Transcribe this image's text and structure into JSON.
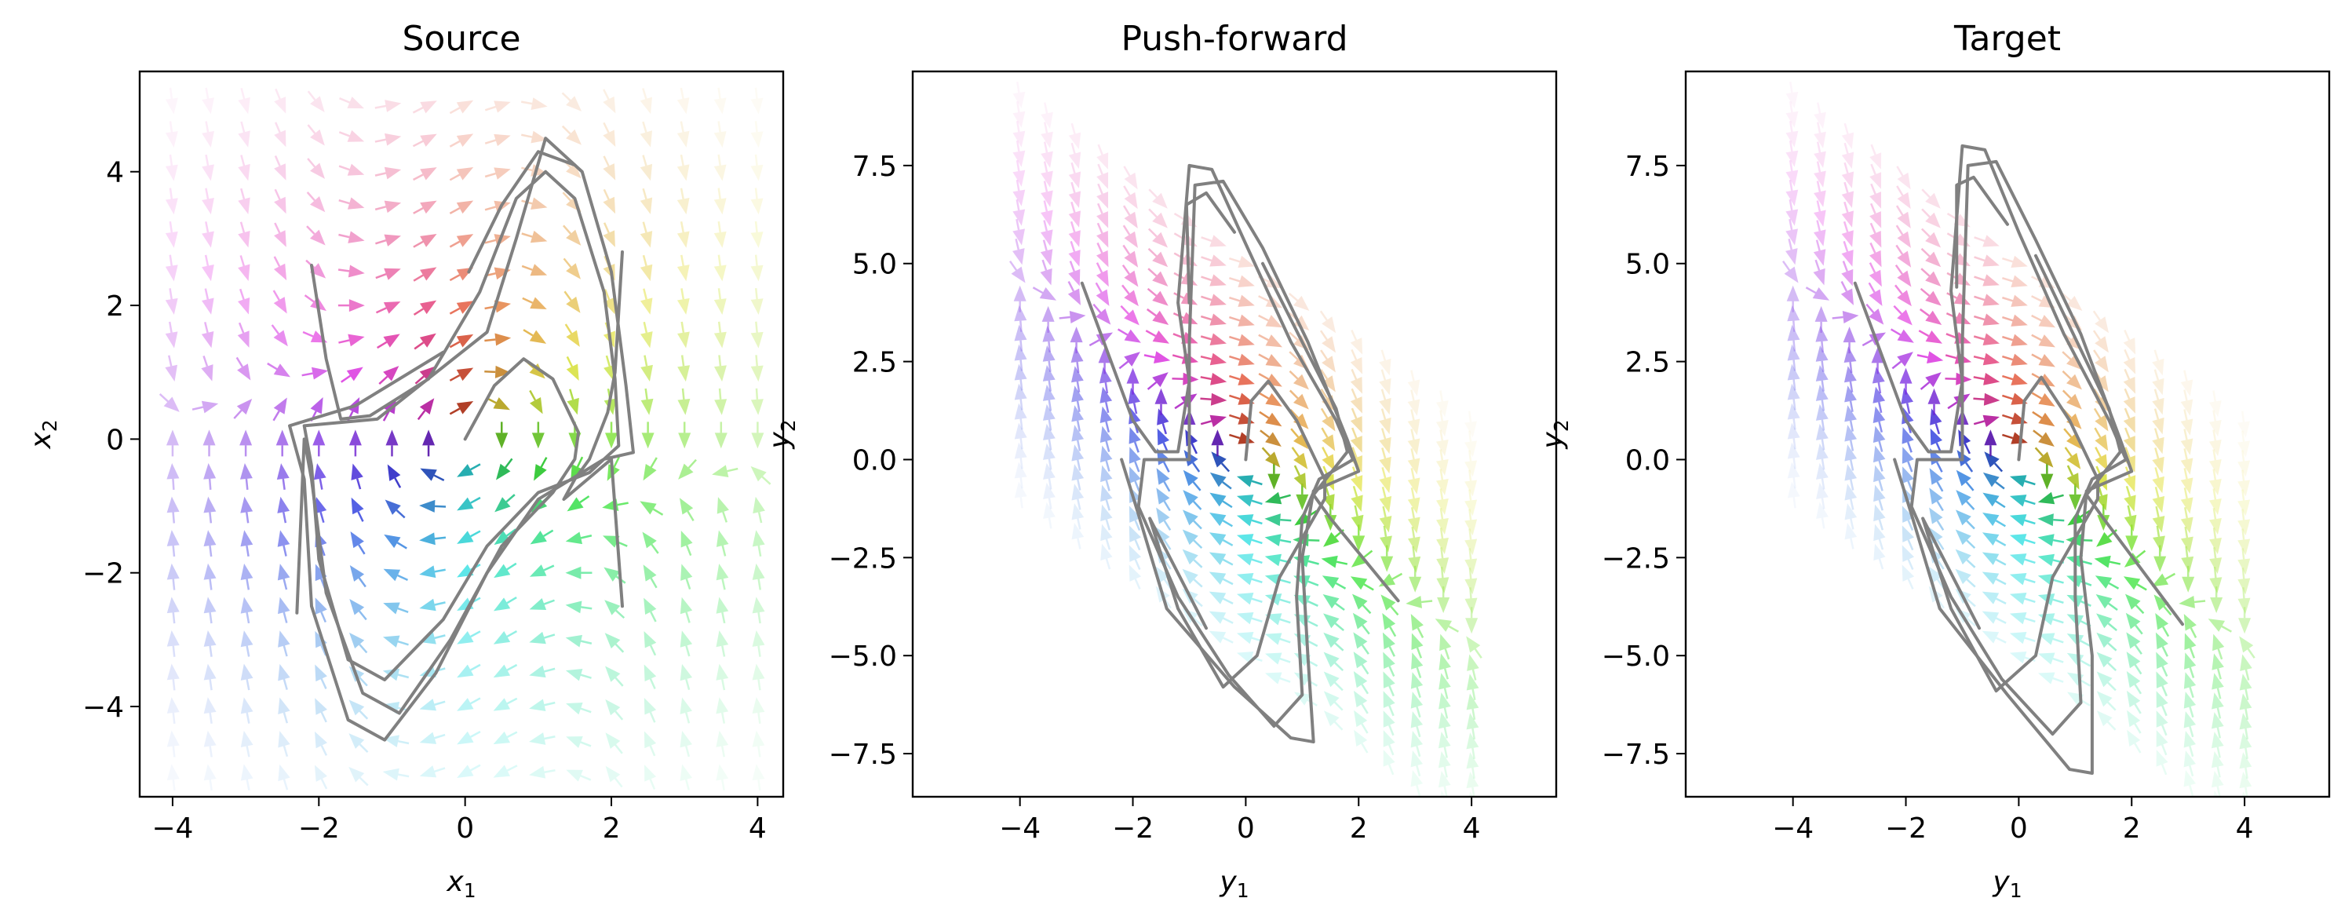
{
  "chart_data": [
    {
      "type": "vector-field",
      "title": "Source",
      "xlabel": "x",
      "xlabel_sub": "1",
      "ylabel": "x",
      "ylabel_sub": "2",
      "xlim": [
        -4.45,
        4.35
      ],
      "ylim": [
        -5.35,
        5.5
      ],
      "xticks": [
        -4,
        -2,
        0,
        2,
        4
      ],
      "xtick_labels": [
        "−4",
        "−2",
        "0",
        "2",
        "4"
      ],
      "yticks": [
        -4,
        -2,
        0,
        2,
        4
      ],
      "ytick_labels": [
        "−4",
        "−2",
        "0",
        "2",
        "4"
      ],
      "field": {
        "x_range": [
          -4,
          4
        ],
        "y_range": [
          -5,
          5
        ],
        "nx": 17,
        "ny": 21,
        "shear": 0
      },
      "trajectories": [
        {
          "name": "",
          "points": [
            [
              -2.1,
              2.6
            ],
            [
              -1.9,
              1.2
            ],
            [
              -1.7,
              0.3
            ],
            [
              -1.3,
              0.35
            ],
            [
              -0.5,
              0.9
            ],
            [
              0.2,
              2.2
            ],
            [
              0.7,
              3.6
            ],
            [
              1.1,
              4.0
            ],
            [
              1.5,
              3.6
            ],
            [
              1.9,
              2.2
            ],
            [
              2.05,
              0.9
            ],
            [
              2.1,
              -0.1
            ],
            [
              1.7,
              -0.5
            ],
            [
              1.0,
              -0.8
            ],
            [
              0.3,
              -1.6
            ],
            [
              -0.3,
              -2.7
            ],
            [
              -1.1,
              -3.6
            ],
            [
              -1.6,
              -3.3
            ],
            [
              -2.0,
              -1.8
            ],
            [
              -2.1,
              -0.4
            ],
            [
              -2.2,
              0.2
            ],
            [
              -1.2,
              0.3
            ],
            [
              0.3,
              1.6
            ],
            [
              0.7,
              3.0
            ],
            [
              1.1,
              4.5
            ],
            [
              1.6,
              4.0
            ],
            [
              2.0,
              2.5
            ],
            [
              2.2,
              0.8
            ],
            [
              2.3,
              -0.2
            ],
            [
              1.9,
              -0.3
            ],
            [
              1.0,
              -0.9
            ],
            [
              0.3,
              -2.0
            ],
            [
              -0.4,
              -3.5
            ],
            [
              -1.1,
              -4.5
            ],
            [
              -1.6,
              -4.2
            ],
            [
              -2.1,
              -2.5
            ],
            [
              -2.2,
              -0.6
            ],
            [
              -2.4,
              0.2
            ],
            [
              -1.5,
              0.5
            ],
            [
              -0.3,
              1.3
            ]
          ]
        },
        {
          "name": "",
          "points": [
            [
              0,
              0
            ],
            [
              0.4,
              0.8
            ],
            [
              0.8,
              1.2
            ],
            [
              1.2,
              0.9
            ],
            [
              1.55,
              0.1
            ],
            [
              1.5,
              -0.3
            ],
            [
              1.2,
              -0.8
            ],
            [
              0.5,
              -1.6
            ],
            [
              -0.2,
              -3.0
            ],
            [
              -0.9,
              -4.1
            ],
            [
              -1.4,
              -3.8
            ],
            [
              -1.9,
              -2.3
            ],
            [
              -2.1,
              -0.6
            ],
            [
              -2.2,
              0.0
            ],
            [
              -2.3,
              -2.6
            ]
          ]
        },
        {
          "name": "",
          "points": [
            [
              2.15,
              2.8
            ],
            [
              2.05,
              1.0
            ],
            [
              1.95,
              0.4
            ],
            [
              1.7,
              -0.3
            ],
            [
              1.5,
              -0.6
            ],
            [
              1.35,
              -0.9
            ],
            [
              2.0,
              -0.3
            ],
            [
              2.15,
              -2.5
            ]
          ]
        },
        {
          "name": "",
          "points": [
            [
              0.05,
              2.5
            ],
            [
              0.5,
              3.5
            ],
            [
              1.0,
              4.3
            ],
            [
              1.5,
              4.1
            ]
          ]
        }
      ]
    },
    {
      "type": "vector-field",
      "title": "Push-forward",
      "xlabel": "y",
      "xlabel_sub": "1",
      "ylabel": "y",
      "ylabel_sub": "2",
      "xlim": [
        -5.9,
        5.5
      ],
      "ylim": [
        -8.6,
        9.9
      ],
      "xticks": [
        -4,
        -2,
        0,
        2,
        4
      ],
      "xtick_labels": [
        "−4",
        "−2",
        "0",
        "2",
        "4"
      ],
      "yticks": [
        -7.5,
        -5.0,
        -2.5,
        0.0,
        2.5,
        5.0,
        7.5
      ],
      "ytick_labels": [
        "−7.5",
        "−5.0",
        "−2.5",
        "0.0",
        "2.5",
        "5.0",
        "7.5"
      ],
      "field": {
        "x_range": [
          -4,
          4
        ],
        "y_range": [
          -5,
          5
        ],
        "nx": 17,
        "ny": 21,
        "shear": -1.05
      },
      "trajectories": [
        {
          "name": "",
          "points": [
            [
              -2.9,
              4.5
            ],
            [
              -2.0,
              1.0
            ],
            [
              -1.6,
              0.2
            ],
            [
              -1.2,
              0.2
            ],
            [
              -1.0,
              2.0
            ],
            [
              -1.2,
              4.0
            ],
            [
              -1.0,
              7.5
            ],
            [
              -0.6,
              7.4
            ],
            [
              0.0,
              5.5
            ],
            [
              0.8,
              3.0
            ],
            [
              1.6,
              1.0
            ],
            [
              1.9,
              0.0
            ],
            [
              1.3,
              -0.5
            ],
            [
              1.0,
              -1.5
            ],
            [
              0.9,
              -3.5
            ],
            [
              1.0,
              -6.0
            ],
            [
              0.5,
              -6.8
            ],
            [
              -0.3,
              -5.5
            ],
            [
              -1.2,
              -3.5
            ],
            [
              -1.9,
              -1.2
            ],
            [
              -1.8,
              0.0
            ],
            [
              -1.0,
              0.0
            ],
            [
              -1.0,
              3.0
            ],
            [
              -0.9,
              7.0
            ],
            [
              -0.4,
              7.1
            ],
            [
              0.3,
              5.4
            ],
            [
              1.1,
              3.0
            ],
            [
              1.8,
              0.5
            ],
            [
              2.0,
              -0.3
            ],
            [
              1.2,
              -0.8
            ],
            [
              1.0,
              -2.5
            ],
            [
              1.1,
              -5.0
            ],
            [
              1.2,
              -7.2
            ],
            [
              0.8,
              -7.1
            ],
            [
              -0.2,
              -5.8
            ],
            [
              -1.4,
              -3.8
            ],
            [
              -1.9,
              -1.4
            ],
            [
              -2.2,
              0.0
            ]
          ]
        },
        {
          "name": "",
          "points": [
            [
              0,
              0
            ],
            [
              0.1,
              1.5
            ],
            [
              0.4,
              2.0
            ],
            [
              0.9,
              1.0
            ],
            [
              1.4,
              -0.5
            ],
            [
              1.4,
              -1.0
            ],
            [
              0.6,
              -3.0
            ],
            [
              0.2,
              -5.0
            ],
            [
              -0.4,
              -5.8
            ],
            [
              -1.2,
              -3.8
            ],
            [
              -1.7,
              -1.5
            ],
            [
              -0.7,
              -4.3
            ]
          ]
        },
        {
          "name": "",
          "points": [
            [
              -1.0,
              4.0
            ],
            [
              -1.05,
              6.5
            ],
            [
              -0.7,
              6.8
            ],
            [
              -0.2,
              5.8
            ]
          ]
        },
        {
          "name": "",
          "points": [
            [
              0.3,
              5.0
            ],
            [
              1.0,
              3.0
            ],
            [
              1.6,
              1.3
            ],
            [
              1.8,
              0.2
            ],
            [
              1.2,
              -0.9
            ],
            [
              1.5,
              -1.5
            ],
            [
              2.7,
              -3.6
            ]
          ]
        }
      ]
    },
    {
      "type": "vector-field",
      "title": "Target",
      "xlabel": "y",
      "xlabel_sub": "1",
      "ylabel": "y",
      "ylabel_sub": "2",
      "xlim": [
        -5.9,
        5.5
      ],
      "ylim": [
        -8.6,
        9.9
      ],
      "xticks": [
        -4,
        -2,
        0,
        2,
        4
      ],
      "xtick_labels": [
        "−4",
        "−2",
        "0",
        "2",
        "4"
      ],
      "yticks": [
        -7.5,
        -5.0,
        -2.5,
        0.0,
        2.5,
        5.0,
        7.5
      ],
      "ytick_labels": [
        "−7.5",
        "−5.0",
        "−2.5",
        "0.0",
        "2.5",
        "5.0",
        "7.5"
      ],
      "field": {
        "x_range": [
          -4,
          4
        ],
        "y_range": [
          -5,
          5
        ],
        "nx": 17,
        "ny": 21,
        "shear": -1.05
      },
      "trajectories": [
        {
          "name": "",
          "points": [
            [
              -2.9,
              4.5
            ],
            [
              -2.0,
              1.0
            ],
            [
              -1.6,
              0.2
            ],
            [
              -1.2,
              0.2
            ],
            [
              -1.0,
              2.0
            ],
            [
              -1.2,
              4.3
            ],
            [
              -1.0,
              8.0
            ],
            [
              -0.6,
              7.9
            ],
            [
              0.0,
              5.8
            ],
            [
              0.8,
              3.2
            ],
            [
              1.6,
              1.0
            ],
            [
              1.9,
              0.0
            ],
            [
              1.3,
              -0.5
            ],
            [
              1.0,
              -1.5
            ],
            [
              1.0,
              -3.5
            ],
            [
              1.1,
              -6.2
            ],
            [
              0.6,
              -7.0
            ],
            [
              -0.3,
              -5.6
            ],
            [
              -1.2,
              -3.5
            ],
            [
              -1.9,
              -1.2
            ],
            [
              -1.8,
              0.0
            ],
            [
              -1.0,
              0.0
            ],
            [
              -1.0,
              3.0
            ],
            [
              -0.9,
              7.5
            ],
            [
              -0.4,
              7.6
            ],
            [
              0.3,
              5.6
            ],
            [
              1.1,
              3.2
            ],
            [
              1.8,
              0.5
            ],
            [
              2.0,
              -0.3
            ],
            [
              1.2,
              -0.8
            ],
            [
              1.1,
              -2.5
            ],
            [
              1.3,
              -5.0
            ],
            [
              1.3,
              -8.0
            ],
            [
              0.9,
              -7.9
            ],
            [
              -0.2,
              -6.0
            ],
            [
              -1.4,
              -3.8
            ],
            [
              -1.9,
              -1.4
            ],
            [
              -2.2,
              0.0
            ]
          ]
        },
        {
          "name": "",
          "points": [
            [
              0,
              0
            ],
            [
              0.1,
              1.5
            ],
            [
              0.4,
              2.1
            ],
            [
              0.9,
              1.0
            ],
            [
              1.4,
              -0.5
            ],
            [
              1.4,
              -1.0
            ],
            [
              0.6,
              -3.0
            ],
            [
              0.3,
              -5.0
            ],
            [
              -0.4,
              -5.9
            ],
            [
              -1.2,
              -3.8
            ],
            [
              -1.7,
              -1.5
            ],
            [
              -0.7,
              -4.3
            ]
          ]
        },
        {
          "name": "",
          "points": [
            [
              -1.1,
              4.4
            ],
            [
              -1.1,
              7.0
            ],
            [
              -0.8,
              7.2
            ],
            [
              -0.2,
              6.0
            ]
          ]
        },
        {
          "name": "",
          "points": [
            [
              0.3,
              5.2
            ],
            [
              1.0,
              3.1
            ],
            [
              1.6,
              1.3
            ],
            [
              1.8,
              0.2
            ],
            [
              1.2,
              -0.9
            ],
            [
              1.5,
              -1.5
            ],
            [
              2.9,
              -4.2
            ]
          ]
        }
      ]
    }
  ]
}
